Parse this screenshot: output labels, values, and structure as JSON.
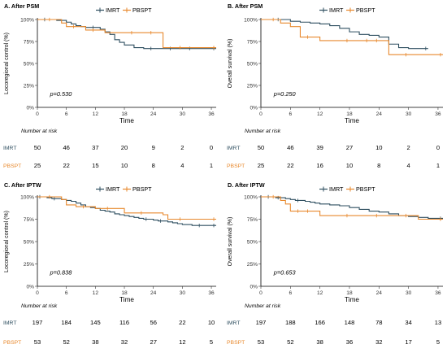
{
  "colors": {
    "imrt": "#2f4f60",
    "pbspt": "#e8892e"
  },
  "legend": {
    "imrt": "IMRT",
    "pbspt": "PBSPT"
  },
  "risk_table_title": "Number at risk",
  "risk_labels": {
    "imrt": "IMRT",
    "pbspt": "PBSPT"
  },
  "chart_data": [
    {
      "type": "line",
      "panel_title": "A. After PSM",
      "xlabel": "Time",
      "ylabel": "Locoregional control (%)",
      "xlim": [
        0,
        37
      ],
      "ylim": [
        0,
        100
      ],
      "x_ticks": [
        0,
        6,
        12,
        18,
        24,
        30,
        36
      ],
      "y_ticks": [
        "0%",
        "25%",
        "50%",
        "75%",
        "100%"
      ],
      "p_value": "p=0.530",
      "series": [
        {
          "name": "IMRT",
          "x": [
            0,
            2,
            4,
            6,
            7,
            8,
            9,
            10,
            12,
            13,
            14,
            15,
            16,
            17,
            18,
            20,
            22,
            24,
            28,
            32,
            37
          ],
          "y": [
            100,
            100,
            99,
            97,
            95,
            93,
            92,
            91,
            91,
            89,
            86,
            83,
            77,
            74,
            71,
            68,
            67,
            67,
            67,
            67,
            67
          ]
        },
        {
          "name": "PBSPT",
          "x": [
            0,
            3,
            5,
            6,
            8,
            10,
            12,
            14,
            20,
            24,
            26,
            30,
            37
          ],
          "y": [
            100,
            100,
            96,
            92,
            92,
            88,
            88,
            85,
            85,
            85,
            68,
            68,
            68
          ]
        }
      ],
      "risk_table": {
        "x": [
          0,
          6,
          12,
          18,
          24,
          30,
          36
        ],
        "imrt": [
          "50",
          "46",
          "37",
          "20",
          "9",
          "2",
          "0"
        ],
        "pbspt": [
          "25",
          "22",
          "15",
          "10",
          "8",
          "4",
          "1"
        ]
      }
    },
    {
      "type": "line",
      "panel_title": "B. After PSM",
      "xlabel": "Time",
      "ylabel": "Overall survival (%)",
      "xlim": [
        0,
        37
      ],
      "ylim": [
        0,
        100
      ],
      "x_ticks": [
        0,
        6,
        12,
        18,
        24,
        30,
        36
      ],
      "y_ticks": [
        "0%",
        "25%",
        "50%",
        "75%",
        "100%"
      ],
      "p_value": "p=0.250",
      "series": [
        {
          "name": "IMRT",
          "x": [
            0,
            4,
            6,
            8,
            10,
            12,
            14,
            16,
            18,
            20,
            22,
            24,
            26,
            28,
            30,
            34
          ],
          "y": [
            100,
            100,
            98,
            97,
            96,
            95,
            93,
            90,
            86,
            83,
            82,
            80,
            72,
            68,
            67,
            67
          ]
        },
        {
          "name": "PBSPT",
          "x": [
            0,
            3,
            4,
            6,
            8,
            10,
            12,
            18,
            22,
            24,
            26,
            30,
            37
          ],
          "y": [
            100,
            100,
            96,
            92,
            80,
            80,
            76,
            76,
            76,
            76,
            60,
            60,
            60
          ]
        }
      ],
      "risk_table": {
        "x": [
          0,
          6,
          12,
          18,
          24,
          30,
          36
        ],
        "imrt": [
          "50",
          "46",
          "39",
          "27",
          "10",
          "2",
          "0"
        ],
        "pbspt": [
          "25",
          "22",
          "16",
          "10",
          "8",
          "4",
          "1"
        ]
      }
    },
    {
      "type": "line",
      "panel_title": "C. After IPTW",
      "xlabel": "Time",
      "ylabel": "Locoregional control (%)",
      "xlim": [
        0,
        37
      ],
      "ylim": [
        0,
        100
      ],
      "x_ticks": [
        0,
        6,
        12,
        18,
        24,
        30,
        36
      ],
      "y_ticks": [
        "0%",
        "25%",
        "50%",
        "75%",
        "100%"
      ],
      "p_value": "p=0.838",
      "series": [
        {
          "name": "IMRT",
          "x": [
            0,
            1,
            2,
            3,
            4,
            5,
            6,
            7,
            8,
            9,
            10,
            11,
            12,
            13,
            14,
            15,
            16,
            17,
            18,
            19,
            20,
            21,
            22,
            23,
            24,
            25,
            26,
            27,
            28,
            29,
            30,
            32,
            34,
            37
          ],
          "y": [
            100,
            100,
            99,
            98,
            98,
            97,
            96,
            95,
            93,
            91,
            89,
            88,
            87,
            85,
            84,
            83,
            81,
            80,
            79,
            78,
            77,
            76,
            75,
            75,
            74,
            73,
            73,
            72,
            71,
            70,
            69,
            68,
            68,
            68
          ]
        },
        {
          "name": "PBSPT",
          "x": [
            0,
            3,
            5,
            6,
            8,
            10,
            12,
            15,
            18,
            22,
            26,
            27,
            30,
            37
          ],
          "y": [
            100,
            100,
            97,
            91,
            89,
            89,
            87,
            87,
            82,
            82,
            80,
            75,
            75,
            75
          ]
        }
      ],
      "risk_table": {
        "x": [
          0,
          6,
          12,
          18,
          24,
          30,
          36
        ],
        "imrt": [
          "197",
          "184",
          "145",
          "116",
          "56",
          "22",
          "10"
        ],
        "pbspt": [
          "53",
          "52",
          "38",
          "32",
          "27",
          "12",
          "5"
        ]
      }
    },
    {
      "type": "line",
      "panel_title": "D. After IPTW",
      "xlabel": "Time",
      "ylabel": "Overall survival (%)",
      "xlim": [
        0,
        37
      ],
      "ylim": [
        0,
        100
      ],
      "x_ticks": [
        0,
        6,
        12,
        18,
        24,
        30,
        36
      ],
      "y_ticks": [
        "0%",
        "25%",
        "50%",
        "75%",
        "100%"
      ],
      "p_value": "p=0.653",
      "series": [
        {
          "name": "IMRT",
          "x": [
            0,
            2,
            3,
            4,
            5,
            6,
            7,
            8,
            9,
            10,
            11,
            12,
            14,
            16,
            18,
            20,
            22,
            24,
            26,
            28,
            30,
            32,
            34,
            37
          ],
          "y": [
            100,
            100,
            99,
            99,
            98,
            97,
            96,
            96,
            95,
            94,
            93,
            92,
            91,
            90,
            88,
            86,
            84,
            83,
            81,
            79,
            78,
            77,
            76,
            76
          ]
        },
        {
          "name": "PBSPT",
          "x": [
            0,
            3,
            4,
            5,
            6,
            8,
            10,
            12,
            18,
            24,
            30,
            32,
            37
          ],
          "y": [
            100,
            100,
            96,
            92,
            84,
            84,
            84,
            79,
            79,
            79,
            79,
            75,
            75
          ]
        }
      ],
      "risk_table": {
        "x": [
          0,
          6,
          12,
          18,
          24,
          30,
          36
        ],
        "imrt": [
          "197",
          "188",
          "166",
          "148",
          "78",
          "34",
          "13"
        ],
        "pbspt": [
          "53",
          "52",
          "38",
          "36",
          "32",
          "17",
          "5"
        ]
      }
    }
  ]
}
